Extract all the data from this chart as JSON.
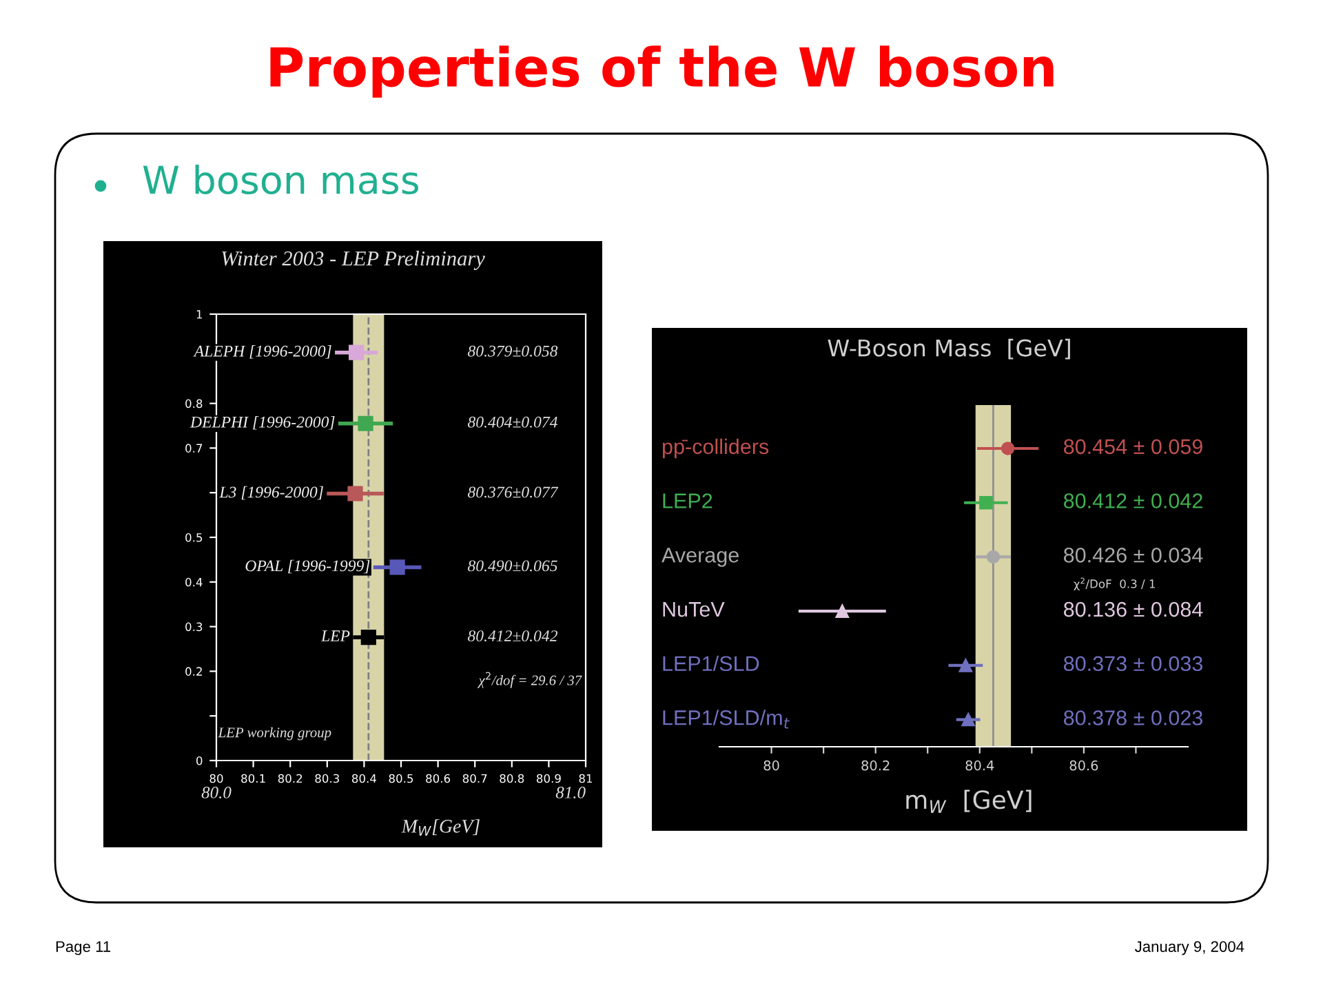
{
  "chart_data": [
    {
      "type": "other",
      "title": "Properties of the W boson",
      "subtitle": "W boson mass",
      "annotations": [
        "Page 11",
        "January 9, 2004"
      ]
    },
    {
      "type": "scatter",
      "title": "Winter 2003 - LEP Preliminary",
      "xlabel": "M$_{W}$[GeV]",
      "xlim": [
        80,
        81
      ],
      "ylim": [
        0,
        1
      ],
      "xticks": [
        80,
        80.1,
        80.2,
        80.3,
        80.4,
        80.5,
        80.6,
        80.7,
        80.8,
        80.9,
        81
      ],
      "yticks": [
        0,
        {
          "value": 0.1,
          "label": null
        },
        0.2,
        0.3,
        0.4,
        0.5,
        {
          "value": 0.6,
          "label": null
        },
        0.7,
        0.8,
        {
          "value": 0.9,
          "label": null
        },
        1
      ],
      "bands": [
        {
          "axis": "x",
          "from": 80.37,
          "to": 80.454,
          "color": "#d8d4a8"
        }
      ],
      "ref_lines": [
        {
          "axis": "x",
          "value": 80.412,
          "color": "#808080",
          "line_style": "dashed"
        }
      ],
      "marker": "square",
      "series": [
        {
          "name": "ALEPH [1996-2000]",
          "color": "#d8a8d8",
          "x": [
            80.379
          ],
          "values": [
            0.914
          ],
          "xerrors": [
            0.058
          ]
        },
        {
          "name": "DELPHI [1996-2000]",
          "color": "#40a850",
          "x": [
            80.404
          ],
          "values": [
            0.755
          ],
          "xerrors": [
            0.074
          ]
        },
        {
          "name": "L3 [1996-2000]",
          "color": "#b85858",
          "x": [
            80.376
          ],
          "values": [
            0.598
          ],
          "xerrors": [
            0.077
          ]
        },
        {
          "name": "OPAL [1996-1999]",
          "color": "#5858b8",
          "x": [
            80.49
          ],
          "values": [
            0.433
          ],
          "xerrors": [
            0.065
          ]
        },
        {
          "name": "LEP",
          "color": "#000000",
          "x": [
            80.412
          ],
          "values": [
            0.276
          ],
          "xerrors": [
            0.042
          ]
        }
      ],
      "annotations": [
        "80.379±0.058",
        "80.404±0.074",
        "80.376±0.077",
        "80.490±0.065",
        "80.412±0.042",
        "χ$^{2}$/dof = 29.6 / 37",
        "LEP working group",
        "80.0",
        "81.0"
      ]
    },
    {
      "type": "scatter",
      "orientation": "horizontal",
      "title": "W-Boson Mass  [GeV]",
      "xlabel": "m$_{W}$  [GeV]",
      "categories": [
        "pp̄-colliders",
        "LEP2",
        "Average",
        "NuTeV",
        "LEP1/SLD",
        "LEP1/SLD/m$_{t}$"
      ],
      "xlim": [
        79.9,
        80.8
      ],
      "xticks": [
        80,
        {
          "value": 80.1,
          "label": null
        },
        80.2,
        {
          "value": 80.3,
          "label": null
        },
        80.4,
        {
          "value": 80.5,
          "label": null
        },
        80.6,
        {
          "value": 80.7,
          "label": null
        }
      ],
      "bands": [
        {
          "axis": "x",
          "from": 80.392,
          "to": 80.46,
          "color": "#d8d4a8"
        }
      ],
      "ref_lines": [
        {
          "axis": "x",
          "value": 80.426,
          "color": "#909090"
        }
      ],
      "series": [
        {
          "color": "#c05050",
          "marker": "circle",
          "values": [
            80.454,
            null,
            null,
            null,
            null,
            null
          ],
          "errors": [
            0.059,
            null,
            null,
            null,
            null,
            null
          ]
        },
        {
          "color": "#40b050",
          "marker": "square",
          "values": [
            null,
            80.412,
            null,
            null,
            null,
            null
          ],
          "errors": [
            null,
            0.042,
            null,
            null,
            null,
            null
          ]
        },
        {
          "color": "#a8a8a8",
          "marker": "circle",
          "values": [
            null,
            null,
            80.426,
            null,
            null,
            null
          ],
          "errors": [
            null,
            null,
            0.034,
            null,
            null,
            null
          ]
        },
        {
          "color": "#e0c8e0",
          "marker": "triangle",
          "values": [
            null,
            null,
            null,
            80.136,
            null,
            null
          ],
          "errors": [
            null,
            null,
            null,
            0.084,
            null,
            null
          ]
        },
        {
          "color": "#7070c0",
          "marker": "triangle",
          "values": [
            null,
            null,
            null,
            null,
            80.373,
            null
          ],
          "errors": [
            null,
            null,
            null,
            null,
            0.033,
            null
          ]
        },
        {
          "color": "#7070c0",
          "marker": "triangle",
          "values": [
            null,
            null,
            null,
            null,
            null,
            80.378
          ],
          "errors": [
            null,
            null,
            null,
            null,
            null,
            0.023
          ]
        }
      ],
      "annotations": [
        "80.454 ± 0.059",
        "80.412 ± 0.042",
        "80.426 ± 0.034",
        "80.136 ± 0.084",
        "80.373 ± 0.033",
        "80.378 ± 0.023",
        "χ$^{2}$/DoF  0.3 / 1"
      ]
    }
  ]
}
